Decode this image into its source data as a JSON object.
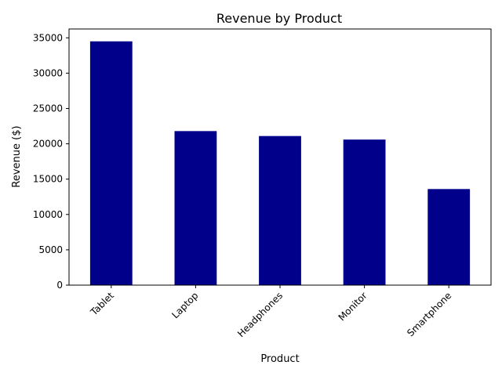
{
  "chart_data": {
    "type": "bar",
    "title": "Revenue by Product",
    "xlabel": "Product",
    "ylabel": "Revenue ($)",
    "categories": [
      "Tablet",
      "Laptop",
      "Headphones",
      "Monitor",
      "Smartphone"
    ],
    "values": [
      34500,
      21800,
      21100,
      20600,
      13600
    ],
    "yticks": [
      0,
      5000,
      10000,
      15000,
      20000,
      25000,
      30000,
      35000
    ],
    "ylim": [
      0,
      36250
    ],
    "bar_color": "#00008b",
    "grid": false,
    "xtick_rotation_deg": 45
  }
}
